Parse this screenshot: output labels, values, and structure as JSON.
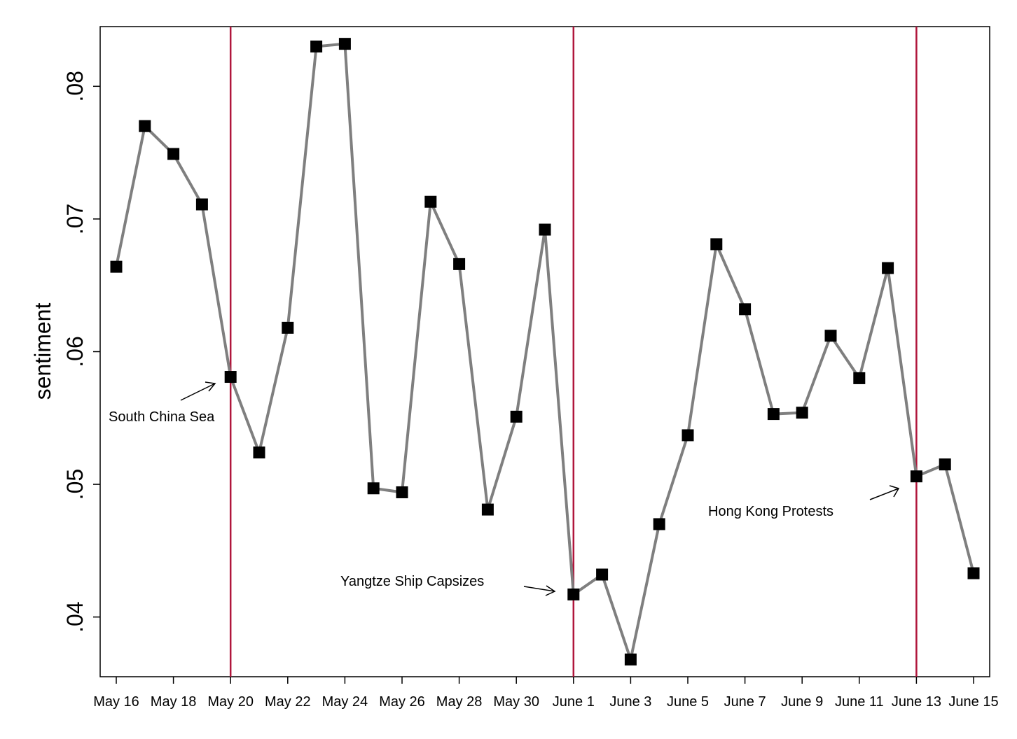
{
  "chart_data": {
    "type": "line",
    "title": "",
    "xlabel": "",
    "ylabel": "sentiment",
    "ylim": [
      0.0355,
      0.0845
    ],
    "yticks": [
      0.04,
      0.05,
      0.06,
      0.07,
      0.08
    ],
    "ytick_labels": [
      ".04",
      ".05",
      ".06",
      ".07",
      ".08"
    ],
    "xtick_labels": [
      "May 16",
      "May 18",
      "May 20",
      "May 22",
      "May 24",
      "May 26",
      "May 28",
      "May 30",
      "June 1",
      "June 3",
      "June 5",
      "June 7",
      "June 9",
      "June 11",
      "June 13",
      "June 15"
    ],
    "x": [
      "May 16",
      "May 17",
      "May 18",
      "May 19",
      "May 20",
      "May 21",
      "May 22",
      "May 23",
      "May 24",
      "May 25",
      "May 26",
      "May 27",
      "May 28",
      "May 29",
      "May 30",
      "May 31",
      "June 1",
      "June 2",
      "June 3",
      "June 4",
      "June 5",
      "June 6",
      "June 7",
      "June 8",
      "June 9",
      "June 10",
      "June 11",
      "June 12",
      "June 13",
      "June 14",
      "June 15"
    ],
    "series": [
      {
        "values": [
          0.0664,
          0.077,
          0.0749,
          0.0711,
          0.0581,
          0.0524,
          0.0618,
          0.083,
          0.0832,
          0.0497,
          0.0494,
          0.0713,
          0.0666,
          0.0481,
          0.0551,
          0.0692,
          0.0417,
          0.0432,
          0.0368,
          0.047,
          0.0537,
          0.0681,
          0.0632,
          0.0553,
          0.0554,
          0.0612,
          0.058,
          0.0663,
          0.0506,
          0.0515,
          0.0433
        ],
        "line_color": "#7f7f7f",
        "marker_color": "#000000"
      }
    ],
    "event_lines": [
      {
        "x": "May 20",
        "color": "#b0163c"
      },
      {
        "x": "June 1",
        "color": "#b0163c"
      },
      {
        "x": "June 13",
        "color": "#b0163c"
      }
    ],
    "annotations": [
      {
        "text": "South China Sea"
      },
      {
        "text": "Yangtze Ship Capsizes"
      },
      {
        "text": "Hong Kong Protests"
      }
    ],
    "grid": false,
    "legend": "none"
  }
}
